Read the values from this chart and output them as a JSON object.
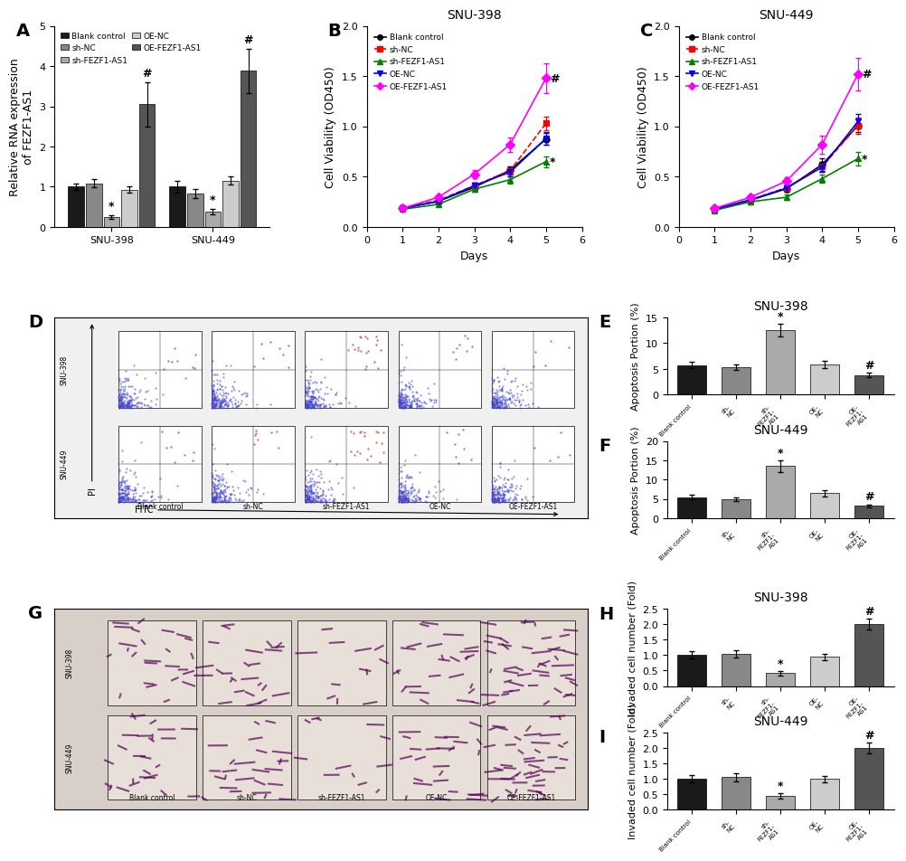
{
  "panel_A": {
    "ylabel": "Relative RNA expression\nof FEZF1-AS1",
    "groups": [
      "SNU-398",
      "SNU-449"
    ],
    "conditions": [
      "Blank control",
      "sh-NC",
      "sh-FEZF1-AS1",
      "OE-NC",
      "OE-FEZF1-AS1"
    ],
    "bar_colors": [
      "#1a1a1a",
      "#888888",
      "#aaaaaa",
      "#cccccc",
      "#555555"
    ],
    "values": [
      [
        1.0,
        1.08,
        0.25,
        0.93,
        3.05
      ],
      [
        1.0,
        0.83,
        0.38,
        1.15,
        3.88
      ]
    ],
    "errors": [
      [
        0.07,
        0.1,
        0.05,
        0.08,
        0.55
      ],
      [
        0.15,
        0.12,
        0.07,
        0.1,
        0.55
      ]
    ],
    "ylim": [
      0,
      5
    ],
    "yticks": [
      0,
      1,
      2,
      3,
      4,
      5
    ]
  },
  "panel_B": {
    "title": "SNU-398",
    "xlabel": "Days",
    "ylabel": "Cell Viability (OD450)",
    "days": [
      1,
      2,
      3,
      4,
      5
    ],
    "ylim": [
      0.0,
      2.0
    ],
    "yticks": [
      0.0,
      0.5,
      1.0,
      1.5,
      2.0
    ],
    "series": {
      "Blank control": {
        "values": [
          0.185,
          0.255,
          0.395,
          0.565,
          0.875
        ],
        "errors": [
          0.015,
          0.02,
          0.03,
          0.04,
          0.06
        ],
        "color": "#000000",
        "marker": "o",
        "linestyle": "-"
      },
      "sh-NC": {
        "values": [
          0.19,
          0.265,
          0.41,
          0.56,
          1.03
        ],
        "errors": [
          0.015,
          0.025,
          0.03,
          0.04,
          0.07
        ],
        "color": "#ff0000",
        "marker": "s",
        "linestyle": "--"
      },
      "sh-FEZF1-AS1": {
        "values": [
          0.175,
          0.225,
          0.375,
          0.47,
          0.65
        ],
        "errors": [
          0.015,
          0.02,
          0.025,
          0.035,
          0.055
        ],
        "color": "#008000",
        "marker": "^",
        "linestyle": "-"
      },
      "OE-NC": {
        "values": [
          0.185,
          0.255,
          0.41,
          0.545,
          0.88
        ],
        "errors": [
          0.015,
          0.02,
          0.03,
          0.04,
          0.06
        ],
        "color": "#0000ff",
        "marker": "v",
        "linestyle": "-"
      },
      "OE-FEZF1-AS1": {
        "values": [
          0.185,
          0.295,
          0.525,
          0.82,
          1.48
        ],
        "errors": [
          0.02,
          0.025,
          0.04,
          0.07,
          0.15
        ],
        "color": "#ff00ff",
        "marker": "D",
        "linestyle": "-"
      }
    }
  },
  "panel_C": {
    "title": "SNU-449",
    "xlabel": "Days",
    "ylabel": "Cell Viability (OD450)",
    "days": [
      1,
      2,
      3,
      4,
      5
    ],
    "ylim": [
      0.0,
      2.0
    ],
    "yticks": [
      0.0,
      0.5,
      1.0,
      1.5,
      2.0
    ],
    "series": {
      "Blank control": {
        "values": [
          0.175,
          0.265,
          0.38,
          0.62,
          1.01
        ],
        "errors": [
          0.015,
          0.02,
          0.03,
          0.06,
          0.07
        ],
        "color": "#000000",
        "marker": "o",
        "linestyle": "-"
      },
      "sh-NC": {
        "values": [
          0.182,
          0.27,
          0.39,
          0.6,
          1.01
        ],
        "errors": [
          0.015,
          0.025,
          0.03,
          0.05,
          0.08
        ],
        "color": "#ff0000",
        "marker": "s",
        "linestyle": "--"
      },
      "sh-FEZF1-AS1": {
        "values": [
          0.165,
          0.25,
          0.295,
          0.48,
          0.68
        ],
        "errors": [
          0.015,
          0.025,
          0.025,
          0.04,
          0.07
        ],
        "color": "#008000",
        "marker": "^",
        "linestyle": "-"
      },
      "OE-NC": {
        "values": [
          0.175,
          0.27,
          0.385,
          0.595,
          1.05
        ],
        "errors": [
          0.015,
          0.02,
          0.03,
          0.05,
          0.07
        ],
        "color": "#0000ff",
        "marker": "v",
        "linestyle": "-"
      },
      "OE-FEZF1-AS1": {
        "values": [
          0.185,
          0.295,
          0.455,
          0.82,
          1.52
        ],
        "errors": [
          0.02,
          0.025,
          0.04,
          0.09,
          0.16
        ],
        "color": "#ff00ff",
        "marker": "D",
        "linestyle": "-"
      }
    }
  },
  "panel_E": {
    "title": "SNU-398",
    "ylabel": "Apoptosis Portion (%)",
    "conditions": [
      "Blank control",
      "sh-NC",
      "sh-FEZF1-AS1",
      "OE-NC",
      "OE-FEZF1-AS1"
    ],
    "bar_colors": [
      "#1a1a1a",
      "#888888",
      "#aaaaaa",
      "#cccccc",
      "#555555"
    ],
    "values": [
      5.7,
      5.3,
      12.5,
      5.8,
      3.8
    ],
    "errors": [
      0.6,
      0.5,
      1.2,
      0.7,
      0.4
    ],
    "ylim": [
      0,
      15
    ],
    "yticks": [
      0,
      5,
      10,
      15
    ]
  },
  "panel_F": {
    "title": "SNU-449",
    "ylabel": "Apoptosis Portion (%)",
    "conditions": [
      "Blank control",
      "sh-NC",
      "sh-FEZF1-AS1",
      "OE-NC",
      "OE-FEZF1-AS1"
    ],
    "bar_colors": [
      "#1a1a1a",
      "#888888",
      "#aaaaaa",
      "#cccccc",
      "#555555"
    ],
    "values": [
      5.5,
      5.0,
      13.5,
      6.5,
      3.2
    ],
    "errors": [
      0.6,
      0.5,
      1.5,
      0.8,
      0.4
    ],
    "ylim": [
      0,
      20
    ],
    "yticks": [
      0,
      5,
      10,
      15,
      20
    ]
  },
  "panel_H": {
    "title": "SNU-398",
    "ylabel": "Invaded cell number (Fold)",
    "conditions": [
      "Blank control",
      "sh-NC",
      "sh-FEZF1-AS1",
      "OE-NC",
      "OE-FEZF1-AS1"
    ],
    "bar_colors": [
      "#1a1a1a",
      "#888888",
      "#aaaaaa",
      "#cccccc",
      "#555555"
    ],
    "values": [
      1.0,
      1.05,
      0.42,
      0.95,
      2.0
    ],
    "errors": [
      0.12,
      0.12,
      0.07,
      0.1,
      0.18
    ],
    "ylim": [
      0,
      2.5
    ],
    "yticks": [
      0.0,
      0.5,
      1.0,
      1.5,
      2.0,
      2.5
    ]
  },
  "panel_I": {
    "title": "SNU-449",
    "ylabel": "Invaded cell number (Fold)",
    "conditions": [
      "Blank control",
      "sh-NC",
      "sh-FEZF1-AS1",
      "OE-NC",
      "OE-FEZF1-AS1"
    ],
    "bar_colors": [
      "#1a1a1a",
      "#888888",
      "#aaaaaa",
      "#cccccc",
      "#555555"
    ],
    "values": [
      1.0,
      1.05,
      0.45,
      1.0,
      2.0
    ],
    "errors": [
      0.12,
      0.12,
      0.08,
      0.1,
      0.18
    ],
    "ylim": [
      0,
      2.5
    ],
    "yticks": [
      0.0,
      0.5,
      1.0,
      1.5,
      2.0,
      2.5
    ]
  },
  "legend": {
    "labels": [
      "Blank control",
      "sh-NC",
      "sh-FEZF1-AS1",
      "OE-NC",
      "OE-FEZF1-AS1"
    ],
    "colors": [
      "#1a1a1a",
      "#888888",
      "#aaaaaa",
      "#cccccc",
      "#555555"
    ]
  },
  "fc_col_labels": [
    "Blank control",
    "sh-NC",
    "sh-FEZF1-AS1",
    "OE-NC",
    "OE-FEZF1-AS1"
  ],
  "fc_row_labels": [
    "SNU-398",
    "SNU-449"
  ],
  "tw_col_labels": [
    "Blank control",
    "sh-NC",
    "sh-FEZF1-AS1",
    "OE-NC",
    "OE-FEZF1-AS1"
  ],
  "tw_row_labels": [
    "SNU-398",
    "SNU-449"
  ],
  "panel_labels_fontsize": 14,
  "axis_fontsize": 9,
  "tick_fontsize": 8,
  "title_fontsize": 10,
  "figure_bg": "#ffffff"
}
